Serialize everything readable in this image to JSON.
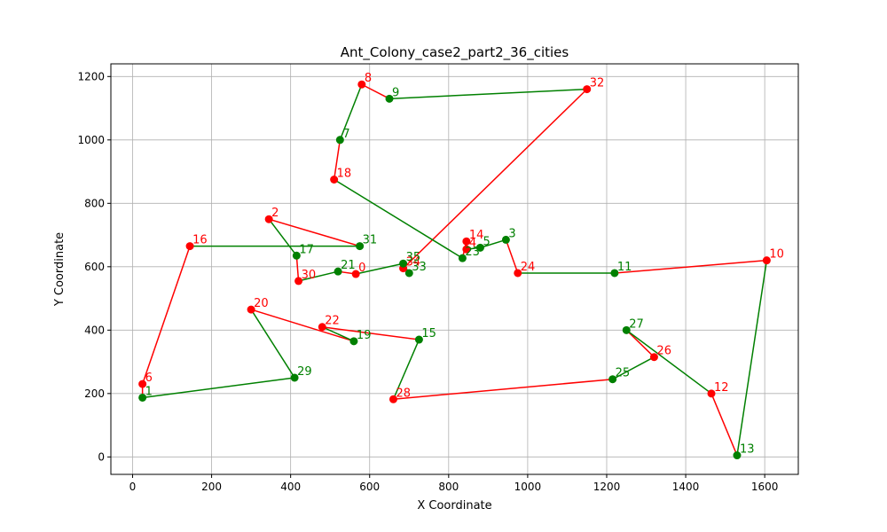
{
  "chart_data": {
    "type": "line",
    "title": "Ant_Colony_case2_part2_36_cities",
    "xlabel": "X Coordinate",
    "ylabel": "Y Coordinate",
    "xlim": [
      -55,
      1685
    ],
    "ylim": [
      -55,
      1240
    ],
    "xticks": [
      0,
      200,
      400,
      600,
      800,
      1000,
      1200,
      1400,
      1600
    ],
    "yticks": [
      0,
      200,
      400,
      600,
      800,
      1000,
      1200
    ],
    "grid": true,
    "colors": {
      "red": "#ff0000",
      "green": "#008000"
    },
    "cities": [
      {
        "id": "0",
        "x": 565,
        "y": 577,
        "color": "red"
      },
      {
        "id": "1",
        "x": 25,
        "y": 187,
        "color": "green"
      },
      {
        "id": "2",
        "x": 345,
        "y": 750,
        "color": "red"
      },
      {
        "id": "3",
        "x": 945,
        "y": 685,
        "color": "green"
      },
      {
        "id": "4",
        "x": 845,
        "y": 655,
        "color": "red"
      },
      {
        "id": "5",
        "x": 880,
        "y": 660,
        "color": "green"
      },
      {
        "id": "6",
        "x": 25,
        "y": 230,
        "color": "red"
      },
      {
        "id": "7",
        "x": 525,
        "y": 1000,
        "color": "green"
      },
      {
        "id": "8",
        "x": 580,
        "y": 1175,
        "color": "red"
      },
      {
        "id": "9",
        "x": 650,
        "y": 1130,
        "color": "green"
      },
      {
        "id": "10",
        "x": 1605,
        "y": 620,
        "color": "red"
      },
      {
        "id": "11",
        "x": 1220,
        "y": 580,
        "color": "green"
      },
      {
        "id": "12",
        "x": 1465,
        "y": 200,
        "color": "red"
      },
      {
        "id": "13",
        "x": 1530,
        "y": 5,
        "color": "green"
      },
      {
        "id": "14",
        "x": 845,
        "y": 680,
        "color": "red"
      },
      {
        "id": "15",
        "x": 725,
        "y": 370,
        "color": "green"
      },
      {
        "id": "16",
        "x": 145,
        "y": 665,
        "color": "red"
      },
      {
        "id": "17",
        "x": 415,
        "y": 635,
        "color": "green"
      },
      {
        "id": "18",
        "x": 510,
        "y": 875,
        "color": "red"
      },
      {
        "id": "19",
        "x": 560,
        "y": 365,
        "color": "green"
      },
      {
        "id": "20",
        "x": 300,
        "y": 465,
        "color": "red"
      },
      {
        "id": "21",
        "x": 520,
        "y": 585,
        "color": "green"
      },
      {
        "id": "22",
        "x": 480,
        "y": 410,
        "color": "red"
      },
      {
        "id": "23",
        "x": 835,
        "y": 627,
        "color": "green"
      },
      {
        "id": "24",
        "x": 975,
        "y": 580,
        "color": "red"
      },
      {
        "id": "25",
        "x": 1215,
        "y": 245,
        "color": "green"
      },
      {
        "id": "26",
        "x": 1320,
        "y": 315,
        "color": "red"
      },
      {
        "id": "27",
        "x": 1250,
        "y": 400,
        "color": "green"
      },
      {
        "id": "28",
        "x": 660,
        "y": 182,
        "color": "red"
      },
      {
        "id": "29",
        "x": 410,
        "y": 250,
        "color": "green"
      },
      {
        "id": "30",
        "x": 420,
        "y": 555,
        "color": "red"
      },
      {
        "id": "31",
        "x": 575,
        "y": 665,
        "color": "green"
      },
      {
        "id": "32",
        "x": 1150,
        "y": 1160,
        "color": "red"
      },
      {
        "id": "33",
        "x": 700,
        "y": 580,
        "color": "green"
      },
      {
        "id": "34",
        "x": 685,
        "y": 595,
        "color": "red"
      },
      {
        "id": "35",
        "x": 685,
        "y": 610,
        "color": "green"
      }
    ],
    "route": [
      "8",
      "9",
      "32",
      "34",
      "33",
      "35",
      "0",
      "21",
      "30",
      "17",
      "2",
      "31",
      "16",
      "6",
      "1",
      "29",
      "20",
      "19",
      "22",
      "15",
      "28",
      "25",
      "26",
      "27",
      "12",
      "13",
      "10",
      "11",
      "24",
      "3",
      "5",
      "4",
      "14",
      "23",
      "18",
      "7",
      "8"
    ]
  }
}
